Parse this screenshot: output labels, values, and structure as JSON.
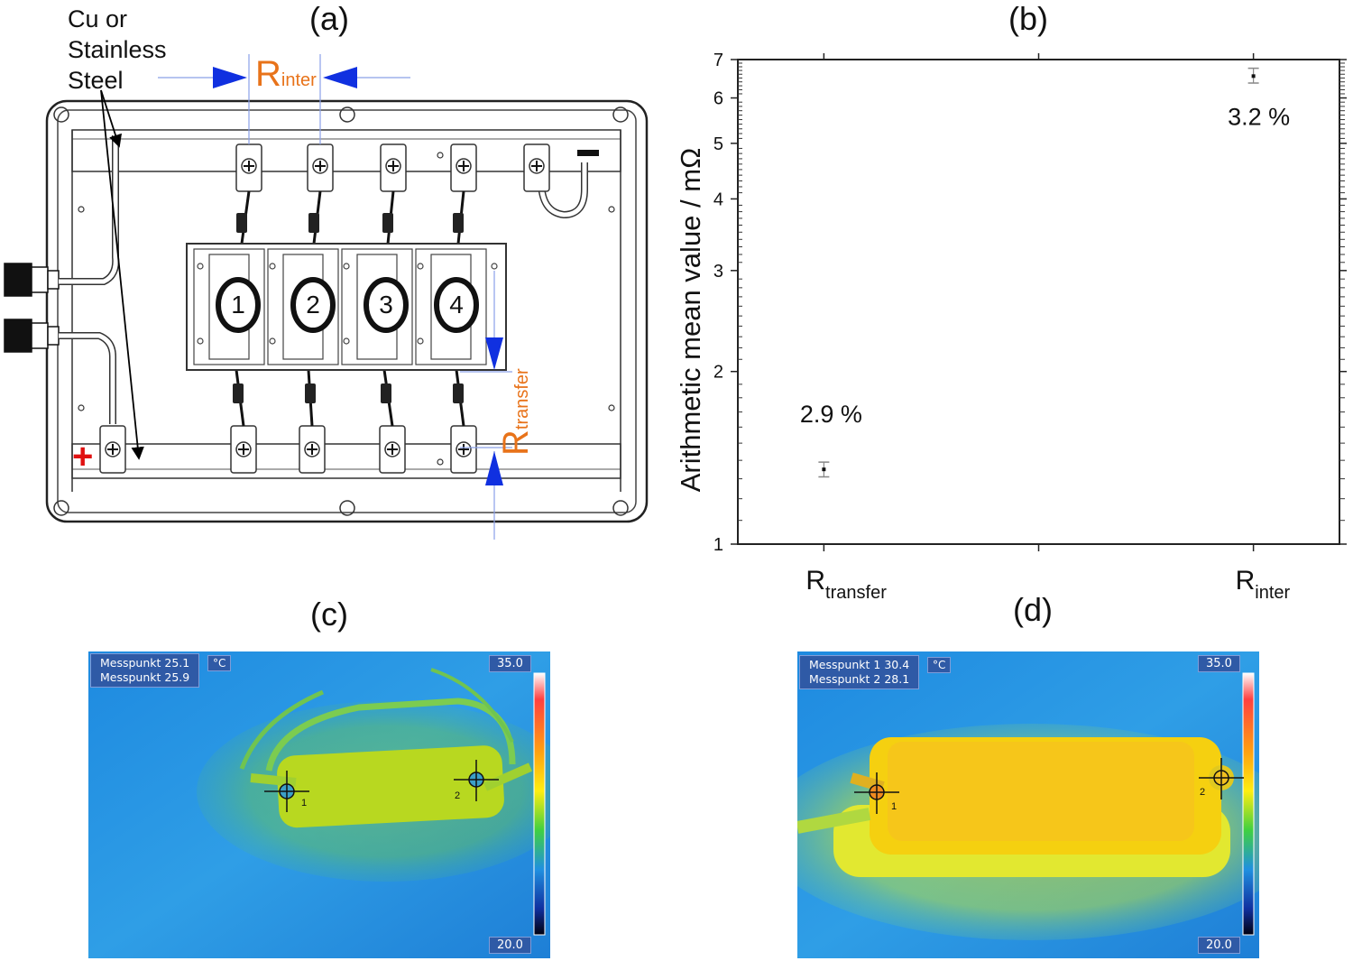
{
  "panels": {
    "a": "(a)",
    "b": "(b)",
    "c": "(c)",
    "d": "(d)"
  },
  "schematic": {
    "material_label": [
      "Cu or",
      "Stainless",
      "Steel"
    ],
    "r_inter_main": "R",
    "r_inter_sub": "inter",
    "r_transfer_main": "R",
    "r_transfer_sub": "transfer",
    "cells": [
      "1",
      "2",
      "3",
      "4"
    ],
    "minus_sign": "−",
    "plus_sign": "+",
    "colors": {
      "label": "#e8731a",
      "arrow": "#1030e0",
      "plus": "#e01010"
    }
  },
  "chart_data": {
    "type": "scatter",
    "title": "",
    "ylabel": "Arithmetic mean value / mΩ",
    "yscale": "log",
    "ylim": [
      1,
      7
    ],
    "yticks": [
      "1",
      "2",
      "3",
      "4",
      "5",
      "6",
      "7"
    ],
    "categories": [
      {
        "main": "R",
        "sub": "transfer"
      },
      {
        "main": "R",
        "sub": "inter"
      }
    ],
    "series": [
      {
        "name": "mean",
        "values": [
          1.35,
          6.55
        ],
        "err_low": [
          1.31,
          6.37
        ],
        "err_high": [
          1.39,
          6.76
        ]
      }
    ],
    "annotations": [
      "2.9 %",
      "3.2 %"
    ]
  },
  "thermo_c": {
    "line1": "Messpunkt 25.1",
    "line2": "Messpunkt 25.9",
    "unit": "°C",
    "max": "35.0",
    "min": "20.0",
    "marker1": "1",
    "marker2": "2"
  },
  "thermo_d": {
    "line1": "Messpunkt 1 30.4",
    "line2": "Messpunkt 2 28.1",
    "unit": "°C",
    "max": "35.0",
    "min": "20.0",
    "marker1": "1",
    "marker2": "2"
  }
}
